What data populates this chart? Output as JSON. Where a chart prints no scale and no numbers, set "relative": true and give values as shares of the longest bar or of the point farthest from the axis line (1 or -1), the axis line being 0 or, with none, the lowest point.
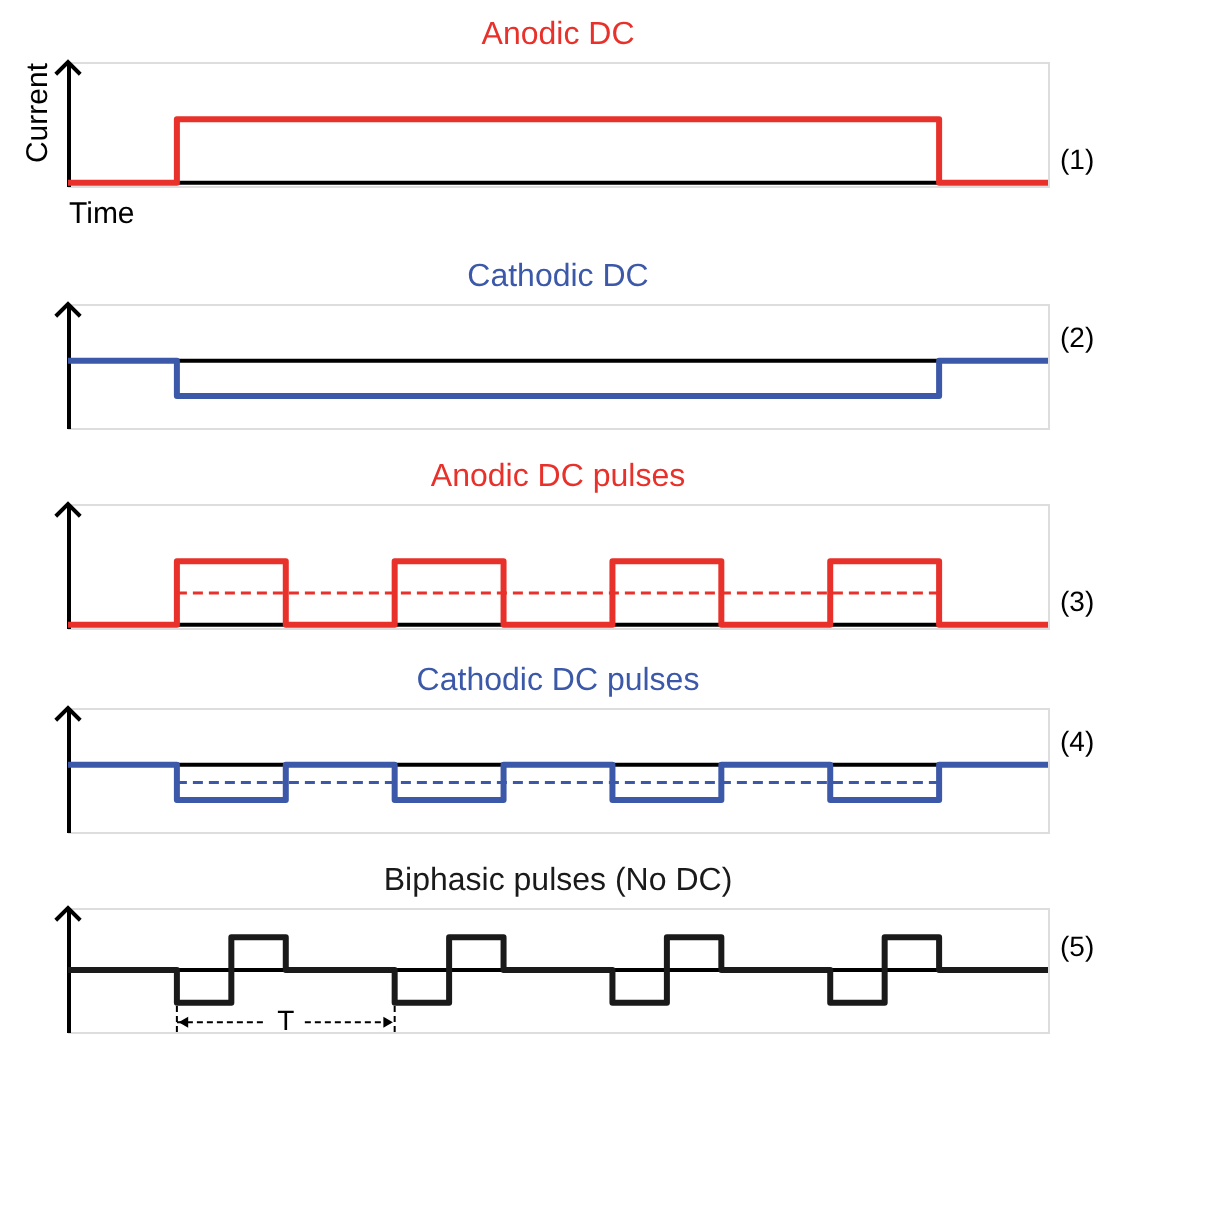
{
  "chart_data": [
    {
      "type": "step",
      "title": "Anodic DC",
      "ylabel": "Current",
      "xlabel": "Time",
      "relative": true,
      "categories": [
        null,
        null,
        null,
        null,
        null,
        null,
        null,
        null,
        null,
        null,
        null,
        null,
        null,
        null,
        null,
        null,
        null,
        null,
        null
      ],
      "series": [
        {
          "color": "#e8312a",
          "line_style": "solid",
          "values": [
            0,
            0,
            1,
            1,
            1,
            1,
            1,
            1,
            1,
            1,
            1,
            1,
            1,
            1,
            1,
            1,
            0,
            0,
            0
          ]
        }
      ],
      "annotations": [
        "(1)"
      ]
    },
    {
      "type": "step",
      "title": "Cathodic DC",
      "relative": true,
      "categories": [
        null,
        null,
        null,
        null,
        null,
        null,
        null,
        null,
        null,
        null,
        null,
        null,
        null,
        null,
        null,
        null,
        null,
        null,
        null
      ],
      "series": [
        {
          "color": "#3c58a8",
          "line_style": "solid",
          "values": [
            0,
            0,
            -1,
            -1,
            -1,
            -1,
            -1,
            -1,
            -1,
            -1,
            -1,
            -1,
            -1,
            -1,
            -1,
            -1,
            0,
            0,
            0
          ]
        }
      ],
      "annotations": [
        "(2)"
      ]
    },
    {
      "type": "step",
      "title": "Anodic DC pulses",
      "relative": true,
      "categories": [
        null,
        null,
        null,
        null,
        null,
        null,
        null,
        null,
        null,
        null,
        null,
        null,
        null,
        null,
        null,
        null,
        null,
        null,
        null
      ],
      "series": [
        {
          "color": "#e8312a",
          "line_style": "solid",
          "values": [
            0,
            0,
            1,
            1,
            0,
            0,
            1,
            1,
            0,
            0,
            1,
            1,
            0,
            0,
            1,
            1,
            0,
            0,
            0
          ]
        },
        {
          "type": "line",
          "color": "#e8312a",
          "line_style": "dashed",
          "values": [
            null,
            null,
            0.5,
            0.5,
            0.5,
            0.5,
            0.5,
            0.5,
            0.5,
            0.5,
            0.5,
            0.5,
            0.5,
            0.5,
            0.5,
            0.5,
            0.5,
            null,
            null
          ]
        }
      ],
      "annotations": [
        "(3)"
      ]
    },
    {
      "type": "step",
      "title": "Cathodic DC pulses",
      "relative": true,
      "categories": [
        null,
        null,
        null,
        null,
        null,
        null,
        null,
        null,
        null,
        null,
        null,
        null,
        null,
        null,
        null,
        null,
        null,
        null,
        null
      ],
      "series": [
        {
          "color": "#3c58a8",
          "line_style": "solid",
          "values": [
            0,
            0,
            -1,
            -1,
            0,
            0,
            -1,
            -1,
            0,
            0,
            -1,
            -1,
            0,
            0,
            -1,
            -1,
            0,
            0,
            0
          ]
        },
        {
          "type": "line",
          "color": "#3c58a8",
          "line_style": "dashed",
          "values": [
            null,
            null,
            -0.5,
            -0.5,
            -0.5,
            -0.5,
            -0.5,
            -0.5,
            -0.5,
            -0.5,
            -0.5,
            -0.5,
            -0.5,
            -0.5,
            -0.5,
            -0.5,
            -0.5,
            null,
            null
          ]
        }
      ],
      "annotations": [
        "(4)"
      ]
    },
    {
      "type": "step",
      "title": "Biphasic pulses (No DC)",
      "relative": true,
      "categories": [
        null,
        null,
        null,
        null,
        null,
        null,
        null,
        null,
        null,
        null,
        null,
        null,
        null,
        null,
        null,
        null,
        null,
        null,
        null
      ],
      "series": [
        {
          "color": "#1a1a1a",
          "line_style": "solid",
          "values": [
            0,
            0,
            -1,
            1,
            0,
            0,
            -1,
            1,
            0,
            0,
            -1,
            1,
            0,
            0,
            -1,
            1,
            0,
            0,
            0
          ]
        }
      ],
      "annotations": [
        "(5)",
        "T"
      ]
    }
  ]
}
